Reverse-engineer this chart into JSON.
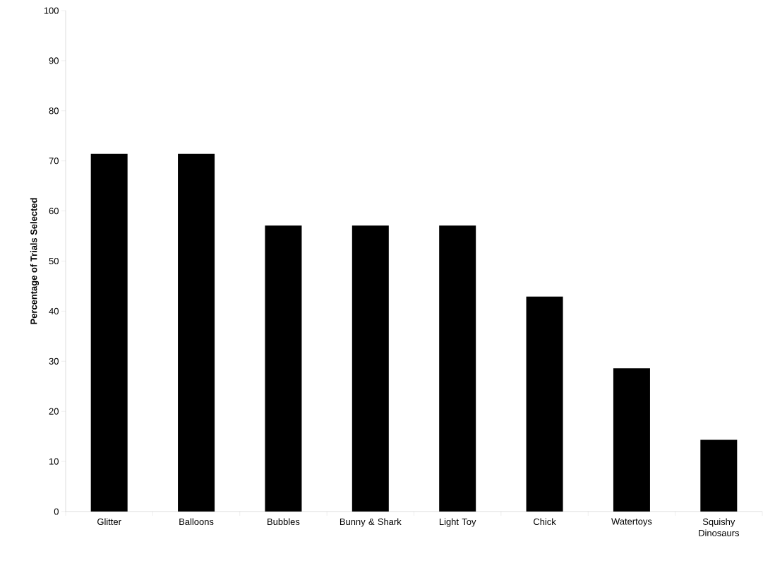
{
  "chart_data": {
    "type": "bar",
    "ylabel": "Percentage of Trials Selected",
    "categories": [
      "Glitter",
      "Balloons",
      "Bubbles",
      "Bunny & Shark",
      "Light Toy",
      "Chick",
      "Watertoys",
      "Squishy Dinosaurs"
    ],
    "values": [
      71.4,
      71.4,
      57.1,
      57.1,
      57.1,
      42.9,
      28.6,
      14.3
    ],
    "color": "#000000",
    "ylim": [
      0,
      100
    ],
    "yticks": [
      0,
      10,
      20,
      30,
      40,
      50,
      60,
      70,
      80,
      90,
      100
    ],
    "grid": false
  }
}
